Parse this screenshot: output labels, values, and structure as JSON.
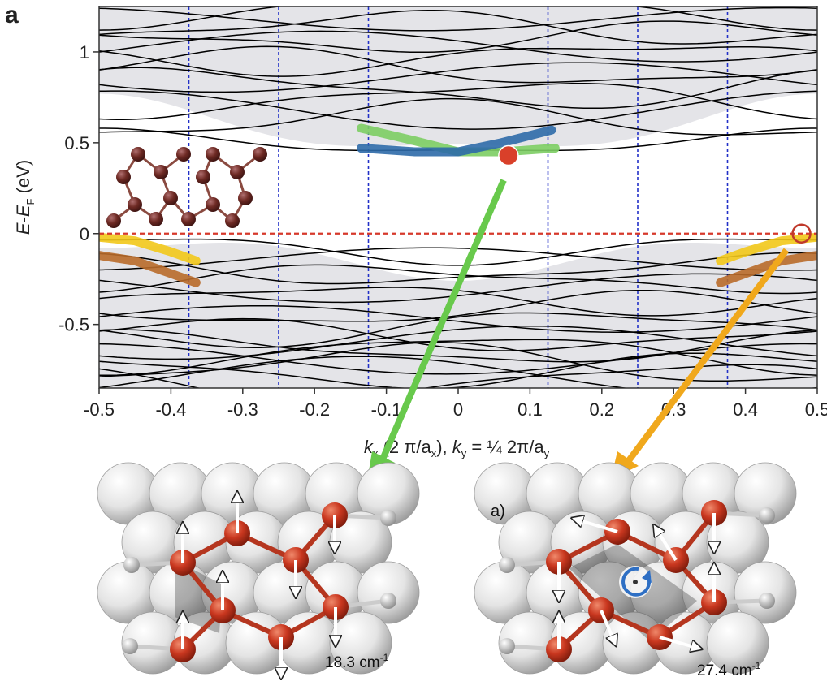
{
  "figure": {
    "panel_label": "a",
    "ylabel": {
      "prefix": "E-E",
      "sub": "F",
      "suffix": " (eV)"
    },
    "xlabel": {
      "k1": "k",
      "k1_sub": "x",
      "part1": " (2 π/a",
      "a1_sub": "x",
      "part2": "), ",
      "k2": "k",
      "k2_sub": "y",
      "part3": " = ¼ 2π/a",
      "a2_sub": "y"
    }
  },
  "chart_data": {
    "type": "line",
    "xlim": [
      -0.5,
      0.5
    ],
    "ylim": [
      -0.85,
      1.25
    ],
    "x_ticks": [
      "-0.5",
      "-0.4",
      "-0.3",
      "-0.2",
      "-0.1",
      "0",
      "0.1",
      "0.2",
      "0.3",
      "0.4",
      "0.5"
    ],
    "y_ticks": [
      "1",
      "0.5",
      "0",
      "-0.5"
    ],
    "y_tick_values": [
      1,
      0.5,
      0,
      -0.5
    ],
    "x_tick_values": [
      -0.5,
      -0.4,
      -0.3,
      -0.2,
      -0.1,
      0,
      0.1,
      0.2,
      0.3,
      0.4,
      0.5
    ],
    "vertical_lines": [
      -0.375,
      -0.25,
      -0.125,
      0.125,
      0.25,
      0.375
    ],
    "fermi_level": 0,
    "highlight_bands": [
      {
        "color": "#7ccd63",
        "x": [
          -0.135,
          -0.06,
          0,
          0.06,
          0.135
        ],
        "y": [
          0.58,
          0.51,
          0.45,
          0.45,
          0.47
        ]
      },
      {
        "color": "#2d6aa8",
        "x": [
          -0.135,
          -0.06,
          0,
          0.06,
          0.13
        ],
        "y": [
          0.47,
          0.45,
          0.45,
          0.5,
          0.57
        ]
      },
      {
        "color": "#f2c81a",
        "x": [
          -0.5,
          -0.45,
          -0.4,
          -0.365
        ],
        "y": [
          -0.02,
          -0.04,
          -0.1,
          -0.15
        ]
      },
      {
        "color": "#b86a2a",
        "x": [
          -0.5,
          -0.45,
          -0.4,
          -0.365
        ],
        "y": [
          -0.12,
          -0.15,
          -0.22,
          -0.27
        ]
      },
      {
        "color": "#f2c81a",
        "x": [
          0.365,
          0.4,
          0.45,
          0.5
        ],
        "y": [
          -0.15,
          -0.1,
          -0.04,
          -0.02
        ]
      },
      {
        "color": "#b86a2a",
        "x": [
          0.365,
          0.4,
          0.45,
          0.5
        ],
        "y": [
          -0.27,
          -0.22,
          -0.15,
          -0.12
        ]
      }
    ],
    "markers": [
      {
        "kind": "filled",
        "x": 0.07,
        "y": 0.43,
        "color": "#d9402a"
      },
      {
        "kind": "open",
        "x": 0.478,
        "y": 0.0,
        "color": "#c0392b"
      }
    ]
  },
  "insets": {
    "left_freq": "18.3 cm",
    "left_freq_sup": "-1",
    "right_label": "a)",
    "right_freq": "27.4 cm",
    "right_freq_sup": "-1"
  },
  "colors": {
    "green_arrow": "#68c94c",
    "orange_arrow": "#f0a81c",
    "atom": "#c9371f",
    "bond": "#a8341c",
    "rotation": "#2e6fc4"
  }
}
